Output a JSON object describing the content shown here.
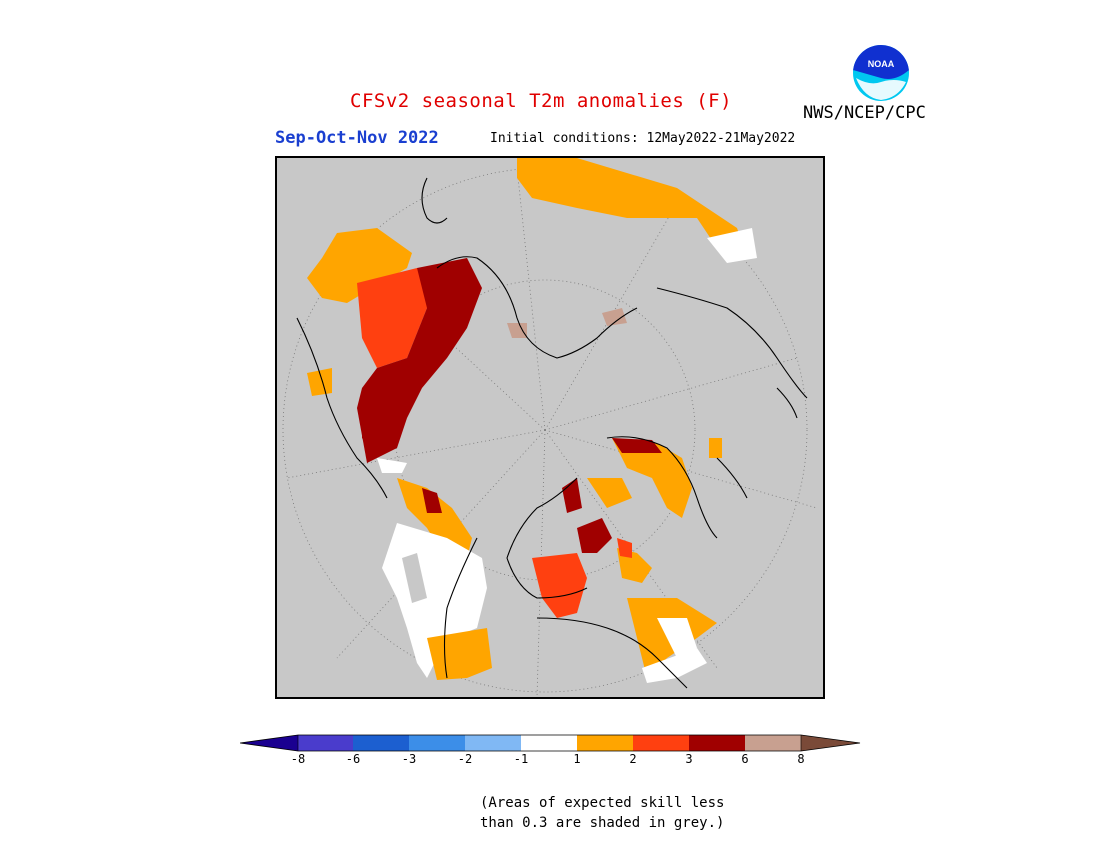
{
  "header": {
    "title": "CFSv2 seasonal T2m anomalies (F)",
    "season": "Sep-Oct-Nov 2022",
    "initial_conditions": "Initial conditions: 12May2022-21May2022",
    "agency": "NWS/NCEP/CPC",
    "logo_text": "NOAA"
  },
  "legend": {
    "ticks": [
      "-8",
      "-6",
      "-3",
      "-2",
      "-1",
      "1",
      "2",
      "3",
      "6",
      "8"
    ],
    "colors": [
      "#1a0090",
      "#4a3ccc",
      "#1c5fd0",
      "#3c8ee8",
      "#80b8f4",
      "#ffffff",
      "#ffa500",
      "#ff4010",
      "#a00000",
      "#c8a090",
      "#7a4a38"
    ],
    "note_line1": "(Areas of expected skill less",
    "note_line2": "than 0.3 are shaded in grey.)"
  },
  "map": {
    "projection": "polar-stereographic-north",
    "background": "#c8c8c8",
    "no_skill_color": "#c8c8c8"
  }
}
